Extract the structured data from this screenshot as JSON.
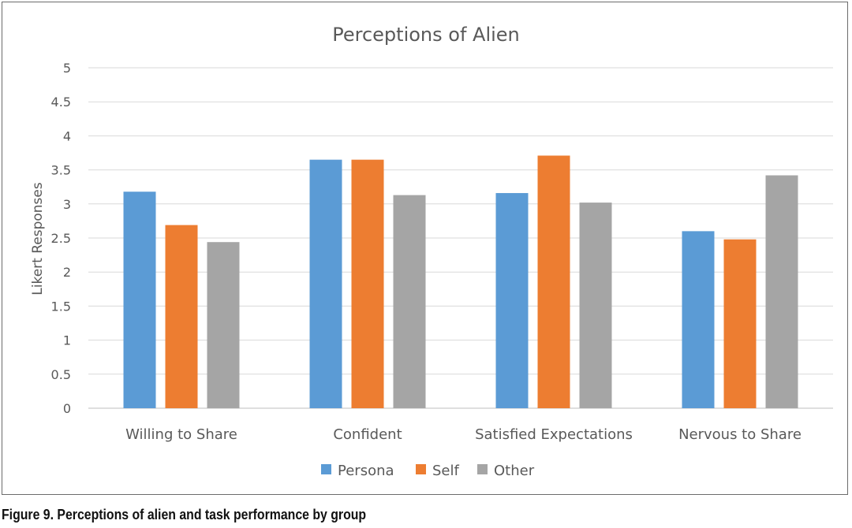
{
  "chart_data": {
    "type": "bar",
    "title": "Perceptions of Alien",
    "ylabel": "Likert Responses",
    "xlabel": "",
    "ylim": [
      0,
      5
    ],
    "yticks": [
      "0",
      "0.5",
      "1",
      "1.5",
      "2",
      "2.5",
      "3",
      "3.5",
      "4",
      "4.5",
      "5"
    ],
    "grid": true,
    "legend": "bottom",
    "categories": [
      "Willing to Share",
      "Confident",
      "Satisfied Expectations",
      "Nervous to Share"
    ],
    "series": [
      {
        "name": "Persona",
        "color": "#5b9bd5",
        "values": [
          3.18,
          3.65,
          3.16,
          2.6
        ]
      },
      {
        "name": "Self",
        "color": "#ed7d31",
        "values": [
          2.69,
          3.65,
          3.71,
          2.48
        ]
      },
      {
        "name": "Other",
        "color": "#a5a5a5",
        "values": [
          2.44,
          3.13,
          3.02,
          3.42
        ]
      }
    ]
  },
  "caption": "Figure 9. Perceptions of alien and task performance by group"
}
